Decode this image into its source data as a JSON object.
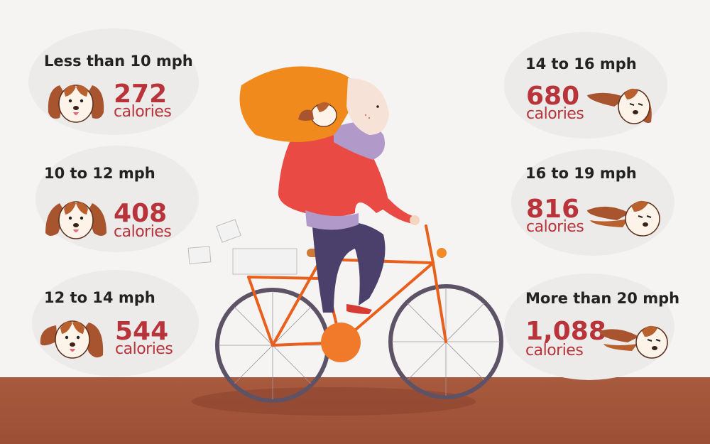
{
  "panels": [
    {
      "speed": "Less than 10 mph",
      "value": "272",
      "unit": "calories"
    },
    {
      "speed": "10 to 12 mph",
      "value": "408",
      "unit": "calories"
    },
    {
      "speed": "12 to 14 mph",
      "value": "544",
      "unit": "calories"
    },
    {
      "speed": "14 to 16 mph",
      "value": "680",
      "unit": "calories"
    },
    {
      "speed": "16 to 19 mph",
      "value": "816",
      "unit": "calories"
    },
    {
      "speed": "More than 20 mph",
      "value": "1,088",
      "unit": "calories"
    }
  ],
  "colors": {
    "accent": "#b8343a",
    "ground": "#a85a3e",
    "hair": "#f08a1c",
    "jacket": "#e94a44",
    "bike": "#e8601c",
    "dog_ear": "#a8542e"
  },
  "icons": [
    "dog-face-icon",
    "cyclist-illustration"
  ]
}
